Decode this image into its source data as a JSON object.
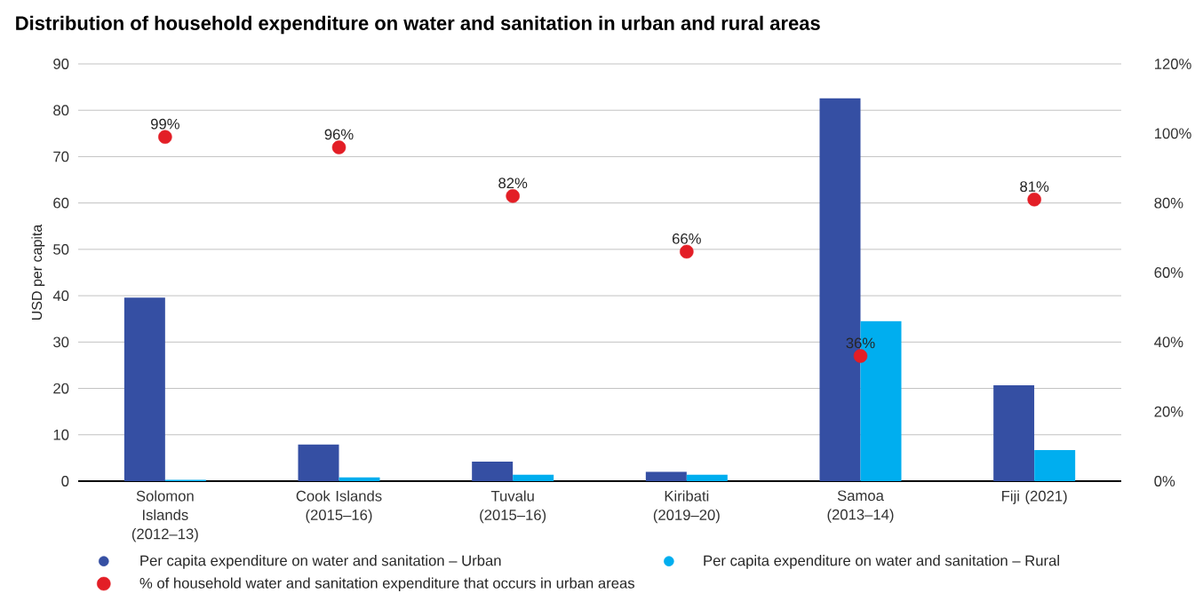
{
  "chart_data": {
    "type": "bar",
    "title": "Distribution of household expenditure on water and sanitation in urban and rural areas",
    "ylabel": "USD per capita",
    "categories": [
      "Solomon Islands (2012–13)",
      "Cook Islands (2015–16)",
      "Tuvalu (2015–16)",
      "Kiribati (2019–20)",
      "Samoa (2013–14)",
      "Fiji (2021)"
    ],
    "series": [
      {
        "name": "Per capita expenditure on water and sanitation – Urban",
        "color": "#354fa3",
        "values": [
          39.6,
          7.9,
          4.2,
          2.0,
          82.6,
          20.7
        ]
      },
      {
        "name": "Per capita expenditure on water and sanitation – Rural",
        "color": "#00aeef",
        "values": [
          0.3,
          0.8,
          1.4,
          1.4,
          34.5,
          6.7
        ]
      },
      {
        "name": "% of household water and sanitation expenditure that occurs in urban areas",
        "type": "scatter",
        "axis": "y2",
        "marker": "circle",
        "color": "#e31e26",
        "values": [
          99,
          96,
          82,
          66,
          36,
          81
        ],
        "value_labels": [
          "99%",
          "96%",
          "82%",
          "66%",
          "36%",
          "81%"
        ]
      }
    ],
    "ylim": [
      0,
      90
    ],
    "yticks": [
      0,
      10,
      20,
      30,
      40,
      50,
      60,
      70,
      80,
      90
    ],
    "y2lim": [
      0,
      120
    ],
    "y2ticks": [
      {
        "value": 0,
        "label": "0%"
      },
      {
        "value": 20,
        "label": "20%"
      },
      {
        "value": 40,
        "label": "40%"
      },
      {
        "value": 60,
        "label": "60%"
      },
      {
        "value": 80,
        "label": "80%"
      },
      {
        "value": 100,
        "label": "100%"
      },
      {
        "value": 120,
        "label": "120%"
      }
    ],
    "grid": "y",
    "legend": "bottom"
  }
}
